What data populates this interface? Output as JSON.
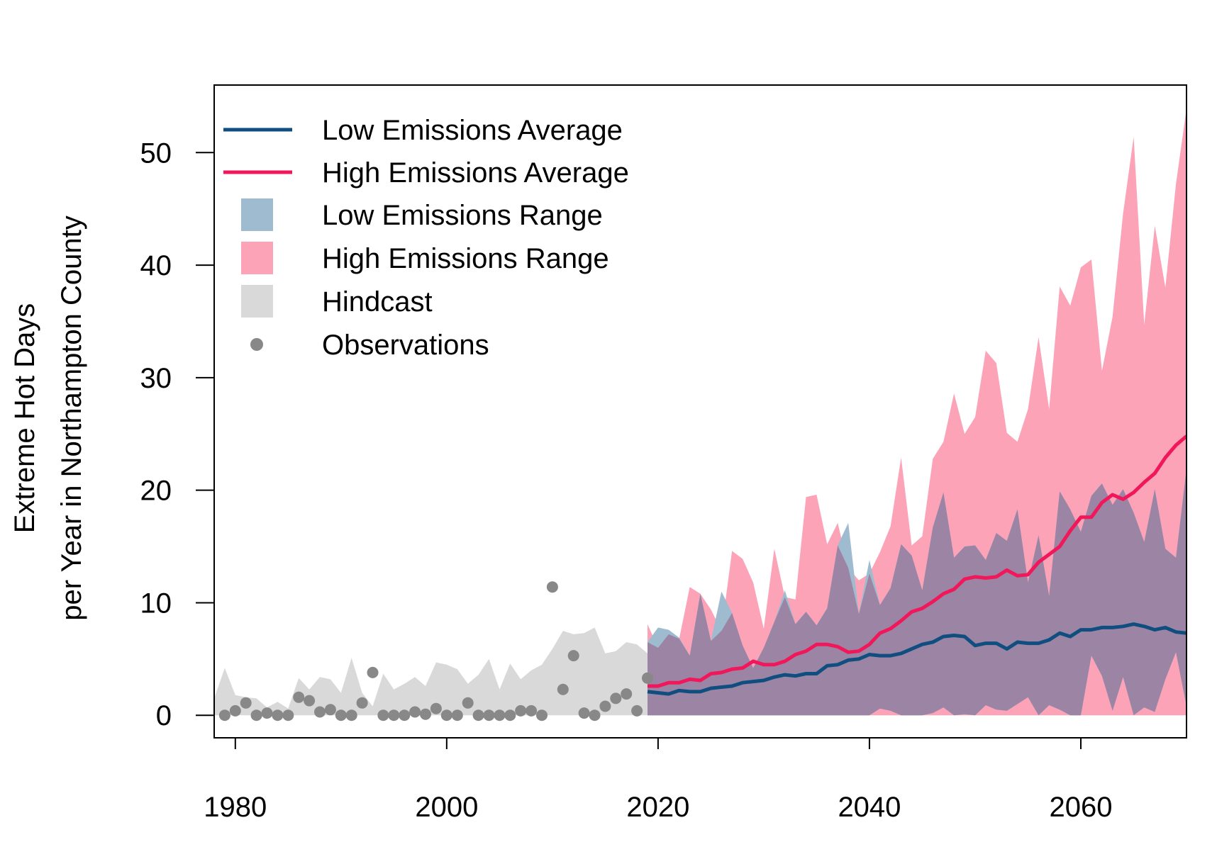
{
  "chart_data": {
    "type": "line",
    "title": "",
    "xlabel": "",
    "ylabel_line1": "Extreme Hot Days",
    "ylabel_line2": "per Year in Northampton County",
    "xlim": [
      1978,
      2070
    ],
    "ylim": [
      -2,
      56
    ],
    "x_ticks": [
      1980,
      2000,
      2020,
      2040,
      2060
    ],
    "y_ticks": [
      0,
      10,
      20,
      30,
      40,
      50
    ],
    "grid": false,
    "legend_position": "top-left",
    "legend": [
      {
        "label": "Low Emissions Average",
        "kind": "line",
        "color": "#114e80"
      },
      {
        "label": "High Emissions Average",
        "kind": "line",
        "color": "#f0185a"
      },
      {
        "label": "Low Emissions Range",
        "kind": "fill",
        "color": "#9fbbd0"
      },
      {
        "label": "High Emissions Range",
        "kind": "fill",
        "color": "#fca3b8"
      },
      {
        "label": "Hindcast",
        "kind": "fill",
        "color": "#d9d9d9"
      },
      {
        "label": "Observations",
        "kind": "point",
        "color": "#888888"
      }
    ],
    "colors": {
      "low_average": "#114e80",
      "high_average": "#f0185a",
      "low_range": "#9fbbd0",
      "high_range": "#fca3b8",
      "overlap": "#9c85a4",
      "hindcast": "#d9d9d9",
      "observations": "#888888"
    },
    "hindcast": {
      "x": [
        1978,
        1979,
        1980,
        1981,
        1982,
        1983,
        1984,
        1985,
        1986,
        1987,
        1988,
        1989,
        1990,
        1991,
        1992,
        1993,
        1994,
        1995,
        1996,
        1997,
        1998,
        1999,
        2000,
        2001,
        2002,
        2003,
        2004,
        2005,
        2006,
        2007,
        2008,
        2009,
        2010,
        2011,
        2012,
        2013,
        2014,
        2015,
        2016,
        2017,
        2018,
        2019
      ],
      "upper": [
        1.5,
        4.2,
        1.8,
        1.6,
        1.5,
        0.7,
        1.2,
        0.6,
        3.3,
        2.3,
        3.4,
        3.2,
        2.0,
        5.1,
        2.0,
        0.8,
        3.7,
        2.3,
        2.8,
        3.4,
        2.6,
        4.7,
        4.5,
        4.1,
        2.8,
        3.6,
        5.0,
        2.3,
        4.6,
        3.2,
        4.0,
        4.5,
        5.9,
        7.5,
        7.2,
        7.3,
        7.8,
        5.5,
        5.7,
        6.5,
        6.3,
        5.5
      ]
    },
    "low_range": {
      "x": [
        2019,
        2020,
        2021,
        2022,
        2023,
        2024,
        2025,
        2026,
        2027,
        2028,
        2029,
        2030,
        2031,
        2032,
        2033,
        2034,
        2035,
        2036,
        2037,
        2038,
        2039,
        2040,
        2041,
        2042,
        2043,
        2044,
        2045,
        2046,
        2047,
        2048,
        2049,
        2050,
        2051,
        2052,
        2053,
        2054,
        2055,
        2056,
        2057,
        2058,
        2059,
        2060,
        2061,
        2062,
        2063,
        2064,
        2065,
        2066,
        2067,
        2068,
        2069,
        2070
      ],
      "upper": [
        6.5,
        7.8,
        7.6,
        6.9,
        5.3,
        10.8,
        6.6,
        11.0,
        9.1,
        6.2,
        4.2,
        6.0,
        8.3,
        11.1,
        8.1,
        9.2,
        8.0,
        9.5,
        15.1,
        17.1,
        9.0,
        13.8,
        9.8,
        11.3,
        15.2,
        14.2,
        11.1,
        16.7,
        19.8,
        14.0,
        15.0,
        15.1,
        13.8,
        16.2,
        15.5,
        18.3,
        11.8,
        16.0,
        10.6,
        19.9,
        18.3,
        16.3,
        19.5,
        20.6,
        18.7,
        20.1,
        18.0,
        15.4,
        20.1,
        14.8,
        14.0,
        21.9
      ],
      "lower": [
        0,
        0,
        0,
        0,
        0,
        0,
        0,
        0,
        0,
        0,
        0,
        0,
        0,
        0,
        0,
        0,
        0,
        0,
        0,
        0,
        0,
        0,
        0.6,
        0.4,
        0,
        0,
        0,
        0.2,
        0.7,
        0,
        0.1,
        0,
        0.9,
        0.5,
        0.4,
        1.0,
        1.6,
        0,
        0.9,
        0.5,
        0,
        0,
        5.3,
        3.5,
        0.4,
        3.4,
        0,
        0.7,
        0.3,
        3.2,
        5.6,
        0.8
      ]
    },
    "high_range": {
      "x": [
        2019,
        2020,
        2021,
        2022,
        2023,
        2024,
        2025,
        2026,
        2027,
        2028,
        2029,
        2030,
        2031,
        2032,
        2033,
        2034,
        2035,
        2036,
        2037,
        2038,
        2039,
        2040,
        2041,
        2042,
        2043,
        2044,
        2045,
        2046,
        2047,
        2048,
        2049,
        2050,
        2051,
        2052,
        2053,
        2054,
        2055,
        2056,
        2057,
        2058,
        2059,
        2060,
        2061,
        2062,
        2063,
        2064,
        2065,
        2066,
        2067,
        2068,
        2069,
        2070
      ],
      "upper": [
        8.1,
        6.0,
        7.2,
        6.8,
        11.4,
        10.8,
        9.4,
        7.5,
        14.6,
        13.9,
        11.8,
        7.7,
        14.8,
        10.5,
        10.3,
        19.4,
        19.6,
        15.2,
        17.1,
        13.1,
        12.0,
        12.6,
        14.5,
        16.8,
        22.9,
        15.1,
        15.9,
        22.8,
        24.3,
        28.6,
        25.0,
        26.5,
        32.4,
        31.3,
        25.1,
        24.3,
        27.2,
        33.6,
        27.2,
        38.1,
        36.4,
        39.8,
        40.5,
        30.6,
        35.4,
        44.6,
        51.4,
        34.7,
        43.5,
        38.0,
        47.2,
        53.9
      ],
      "lower": [
        0,
        0,
        0,
        0,
        0,
        0,
        0,
        0,
        0,
        0,
        0,
        0,
        0,
        0,
        0,
        0,
        0,
        0,
        0,
        0,
        0,
        0,
        0,
        0,
        0,
        0,
        0,
        0,
        0,
        0,
        0,
        0,
        0,
        0,
        0,
        0,
        0,
        0,
        0,
        0,
        0,
        0,
        0,
        0,
        0,
        0,
        0,
        0,
        0,
        0,
        0,
        0
      ]
    },
    "series": [
      {
        "name": "Low Emissions Average",
        "x": [
          2019,
          2020,
          2021,
          2022,
          2023,
          2024,
          2025,
          2026,
          2027,
          2028,
          2029,
          2030,
          2031,
          2032,
          2033,
          2034,
          2035,
          2036,
          2037,
          2038,
          2039,
          2040,
          2041,
          2042,
          2043,
          2044,
          2045,
          2046,
          2047,
          2048,
          2049,
          2050,
          2051,
          2052,
          2053,
          2054,
          2055,
          2056,
          2057,
          2058,
          2059,
          2060,
          2061,
          2062,
          2063,
          2064,
          2065,
          2066,
          2067,
          2068,
          2069,
          2070
        ],
        "values": [
          2.1,
          2.0,
          1.9,
          2.2,
          2.1,
          2.1,
          2.4,
          2.5,
          2.6,
          2.9,
          3.0,
          3.1,
          3.4,
          3.6,
          3.5,
          3.7,
          3.7,
          4.4,
          4.5,
          4.9,
          5.0,
          5.4,
          5.3,
          5.3,
          5.5,
          5.9,
          6.3,
          6.5,
          7.0,
          7.1,
          7.0,
          6.2,
          6.4,
          6.4,
          5.9,
          6.5,
          6.4,
          6.4,
          6.7,
          7.3,
          7.0,
          7.6,
          7.6,
          7.8,
          7.8,
          7.9,
          8.1,
          7.9,
          7.6,
          7.8,
          7.4,
          7.3
        ]
      },
      {
        "name": "High Emissions Average",
        "x": [
          2019,
          2020,
          2021,
          2022,
          2023,
          2024,
          2025,
          2026,
          2027,
          2028,
          2029,
          2030,
          2031,
          2032,
          2033,
          2034,
          2035,
          2036,
          2037,
          2038,
          2039,
          2040,
          2041,
          2042,
          2043,
          2044,
          2045,
          2046,
          2047,
          2048,
          2049,
          2050,
          2051,
          2052,
          2053,
          2054,
          2055,
          2056,
          2057,
          2058,
          2059,
          2060,
          2061,
          2062,
          2063,
          2064,
          2065,
          2066,
          2067,
          2068,
          2069,
          2070
        ],
        "values": [
          2.6,
          2.6,
          2.9,
          2.9,
          3.2,
          3.1,
          3.7,
          3.8,
          4.1,
          4.2,
          4.8,
          4.5,
          4.5,
          4.8,
          5.4,
          5.7,
          6.3,
          6.3,
          6.1,
          5.6,
          5.7,
          6.3,
          7.3,
          7.7,
          8.4,
          9.2,
          9.5,
          10.1,
          10.8,
          11.2,
          12.1,
          12.3,
          12.2,
          12.3,
          12.9,
          12.4,
          12.5,
          13.6,
          14.3,
          15.0,
          16.4,
          17.6,
          17.6,
          18.9,
          19.6,
          19.2,
          19.8,
          20.7,
          21.5,
          22.9,
          24.0,
          24.8
        ]
      }
    ],
    "observations": {
      "x": [
        1979,
        1980,
        1981,
        1982,
        1983,
        1984,
        1985,
        1986,
        1987,
        1988,
        1989,
        1990,
        1991,
        1992,
        1993,
        1994,
        1995,
        1996,
        1997,
        1998,
        1999,
        2000,
        2001,
        2002,
        2003,
        2004,
        2005,
        2006,
        2007,
        2008,
        2009,
        2010,
        2011,
        2012,
        2013,
        2014,
        2015,
        2016,
        2017,
        2018,
        2019
      ],
      "y": [
        0,
        0.4,
        1.1,
        0,
        0.2,
        0,
        0,
        1.6,
        1.3,
        0.3,
        0.5,
        0,
        0,
        1.1,
        3.8,
        0,
        0,
        0,
        0.3,
        0.1,
        0.6,
        0,
        0,
        1.1,
        0,
        0,
        0,
        0,
        0.4,
        0.4,
        0,
        11.4,
        2.3,
        5.3,
        0.2,
        0,
        0.8,
        1.5,
        1.9,
        0.4,
        3.3
      ]
    }
  }
}
